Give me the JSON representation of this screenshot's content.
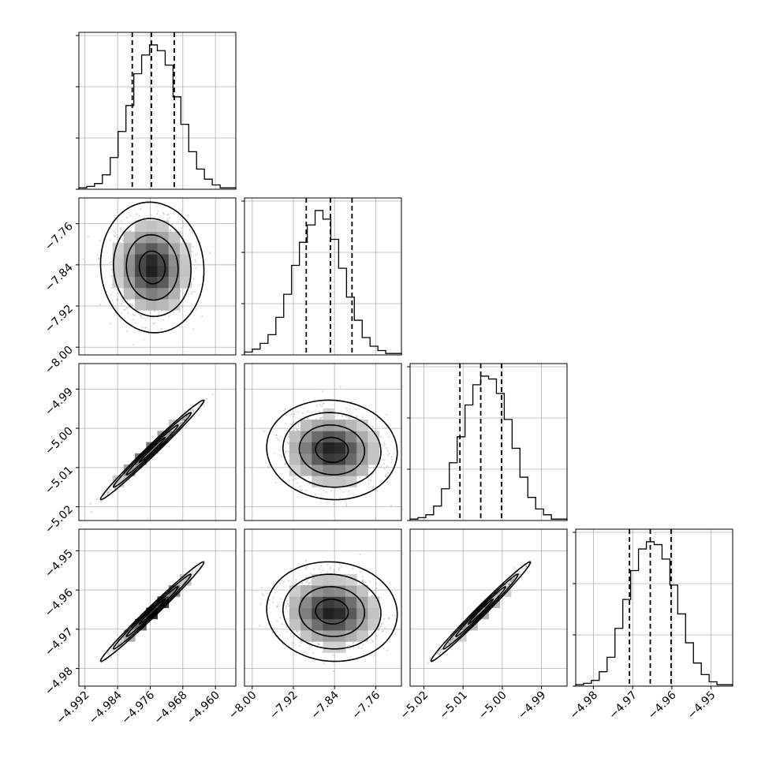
{
  "chart_data": {
    "type": "corner",
    "parameters": [
      {
        "range": [
          -4.9935,
          -4.955
        ],
        "ticks": [
          "−4.992",
          "−4.984",
          "−4.976",
          "−4.968",
          "−4.960"
        ],
        "tick_values": [
          -4.992,
          -4.984,
          -4.976,
          -4.968,
          -4.96
        ],
        "mean": -4.9755,
        "sd": 0.0045,
        "quantiles": [
          -4.9804,
          -4.9757,
          -4.9701
        ],
        "histogram": [
          1,
          2,
          4,
          10,
          22,
          40,
          58,
          80,
          93,
          100,
          96,
          86,
          64,
          45,
          26,
          14,
          7,
          3,
          1,
          1
        ],
        "hist_ticks": [
          0,
          1,
          2,
          3
        ]
      },
      {
        "range": [
          -8.015,
          -7.71
        ],
        "ticks": [
          "−8.00",
          "−7.92",
          "−7.84",
          "−7.76"
        ],
        "tick_values": [
          -8.0,
          -7.92,
          -7.84,
          -7.76
        ],
        "mean": -7.845,
        "sd": 0.045,
        "quantiles": [
          -7.895,
          -7.848,
          -7.806
        ],
        "histogram": [
          2,
          4,
          8,
          14,
          26,
          42,
          62,
          78,
          90,
          100,
          94,
          80,
          60,
          40,
          24,
          12,
          6,
          3,
          1,
          1
        ],
        "hist_ticks": [
          0,
          1,
          2,
          3
        ]
      },
      {
        "range": [
          -5.0235,
          -4.9835
        ],
        "ticks": [
          "−5.02",
          "−5.01",
          "−5.00",
          "−4.99"
        ],
        "tick_values": [
          -5.02,
          -5.01,
          -5.0,
          -4.99
        ],
        "mean": -5.0055,
        "sd": 0.0045,
        "quantiles": [
          -5.0108,
          -5.0055,
          -5.0002
        ],
        "histogram": [
          1,
          2,
          4,
          10,
          22,
          40,
          58,
          80,
          94,
          100,
          98,
          88,
          70,
          50,
          30,
          16,
          8,
          4,
          1,
          1
        ],
        "hist_ticks": [
          0,
          1,
          2,
          3
        ]
      },
      {
        "range": [
          -4.9845,
          -4.9445
        ],
        "ticks": [
          "−4.98",
          "−4.97",
          "−4.96",
          "−4.95"
        ],
        "tick_values": [
          -4.98,
          -4.97,
          -4.96,
          -4.95
        ],
        "mean": -4.9655,
        "sd": 0.0045,
        "quantiles": [
          -4.9708,
          -4.9655,
          -4.9602
        ],
        "histogram": [
          1,
          2,
          4,
          10,
          20,
          40,
          60,
          80,
          95,
          100,
          98,
          88,
          70,
          50,
          30,
          16,
          8,
          3,
          1,
          1
        ],
        "hist_ticks": [
          0,
          1,
          2,
          3
        ]
      }
    ],
    "correlations": [
      [
        1,
        -0.05,
        0.99,
        0.99
      ],
      [
        -0.05,
        1,
        -0.05,
        -0.05
      ],
      [
        0.99,
        -0.05,
        1,
        0.99
      ],
      [
        0.99,
        -0.05,
        0.99,
        1
      ]
    ],
    "contour_levels": [
      0.5,
      1.0,
      1.5,
      2.0
    ],
    "grid": true
  },
  "colors": {
    "line": "#000000",
    "grid": "#b0b0b0",
    "scatter": "#7a7a7a",
    "density_max": "#1a1a1a"
  }
}
